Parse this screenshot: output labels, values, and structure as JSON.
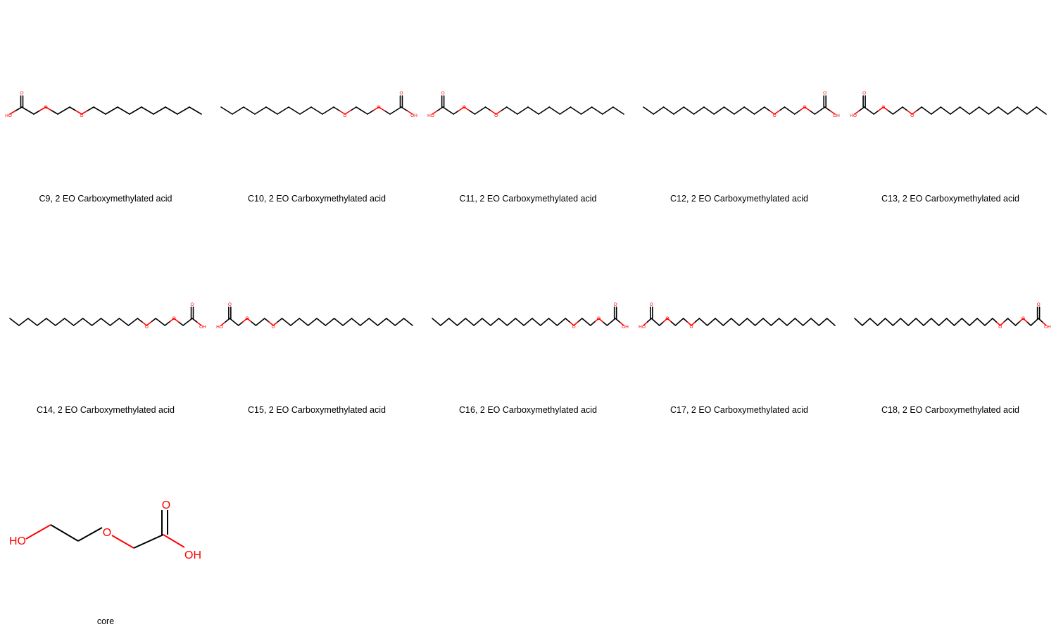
{
  "colors": {
    "bond": "#000000",
    "heteroatom": "#ff0000",
    "background": "#ffffff"
  },
  "molecules": [
    {
      "label": "C9, 2 EO Carboxymethylated acid",
      "chain_carbons": 9,
      "acid_side": "left",
      "ho_label": "HO",
      "o_label": "O",
      "oh_label": "OH"
    },
    {
      "label": "C10, 2 EO Carboxymethylated acid",
      "chain_carbons": 10,
      "acid_side": "right",
      "ho_label": "HO",
      "o_label": "O",
      "oh_label": "OH"
    },
    {
      "label": "C11, 2 EO Carboxymethylated acid",
      "chain_carbons": 11,
      "acid_side": "left",
      "ho_label": "HO",
      "o_label": "O",
      "oh_label": "OH"
    },
    {
      "label": "C12, 2 EO Carboxymethylated acid",
      "chain_carbons": 12,
      "acid_side": "right",
      "ho_label": "HO",
      "o_label": "O",
      "oh_label": "OH"
    },
    {
      "label": "C13, 2 EO Carboxymethylated acid",
      "chain_carbons": 13,
      "acid_side": "left",
      "ho_label": "HO",
      "o_label": "O",
      "oh_label": "OH"
    },
    {
      "label": "C14, 2 EO Carboxymethylated acid",
      "chain_carbons": 14,
      "acid_side": "right",
      "ho_label": "HO",
      "o_label": "O",
      "oh_label": "OH"
    },
    {
      "label": "C15, 2 EO Carboxymethylated acid",
      "chain_carbons": 15,
      "acid_side": "left",
      "ho_label": "HO",
      "o_label": "O",
      "oh_label": "OH"
    },
    {
      "label": "C16, 2 EO Carboxymethylated acid",
      "chain_carbons": 16,
      "acid_side": "right",
      "ho_label": "HO",
      "o_label": "O",
      "oh_label": "OH"
    },
    {
      "label": "C17, 2 EO Carboxymethylated acid",
      "chain_carbons": 17,
      "acid_side": "left",
      "ho_label": "HO",
      "o_label": "O",
      "oh_label": "OH"
    },
    {
      "label": "C18, 2 EO Carboxymethylated acid",
      "chain_carbons": 18,
      "acid_side": "right",
      "ho_label": "HO",
      "o_label": "O",
      "oh_label": "OH"
    }
  ],
  "core": {
    "label": "core",
    "ho_label": "HO",
    "o_label": "O",
    "oh_label": "OH"
  }
}
